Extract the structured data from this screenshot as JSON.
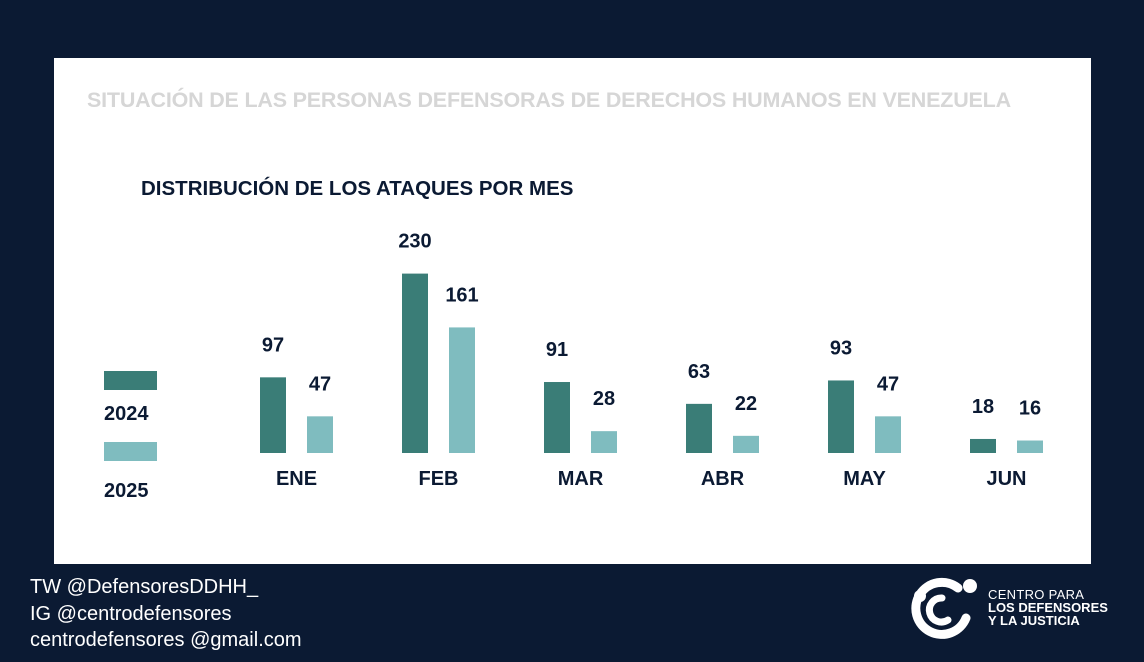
{
  "header": {
    "title": "SITUACIÓN DE LAS PERSONAS DEFENSORAS DE DERECHOS HUMANOS EN VENEZUELA"
  },
  "chart_data": {
    "type": "bar",
    "title": "DISTRIBUCIÓN DE LOS ATAQUES POR MES",
    "categories": [
      "ENE",
      "FEB",
      "MAR",
      "ABR",
      "MAY",
      "JUN"
    ],
    "series": [
      {
        "name": "2024",
        "values": [
          97,
          230,
          91,
          63,
          93,
          18
        ],
        "color": "#3a7d77"
      },
      {
        "name": "2025",
        "values": [
          47,
          161,
          28,
          22,
          47,
          16
        ],
        "color": "#7fbcbf"
      }
    ],
    "xlabel": "",
    "ylabel": "",
    "grid": false,
    "legend": "left",
    "data_labels": true
  },
  "footer": {
    "twitter": "TW @DefensoresDDHH_",
    "instagram": "IG @centrodefensores",
    "email": "centrodefensores @gmail.com"
  },
  "logo": {
    "line1": "CENTRO PARA",
    "line2": "LOS DEFENSORES",
    "line3": "Y LA JUSTICIA",
    "icon": "person-circle-logo-icon"
  }
}
